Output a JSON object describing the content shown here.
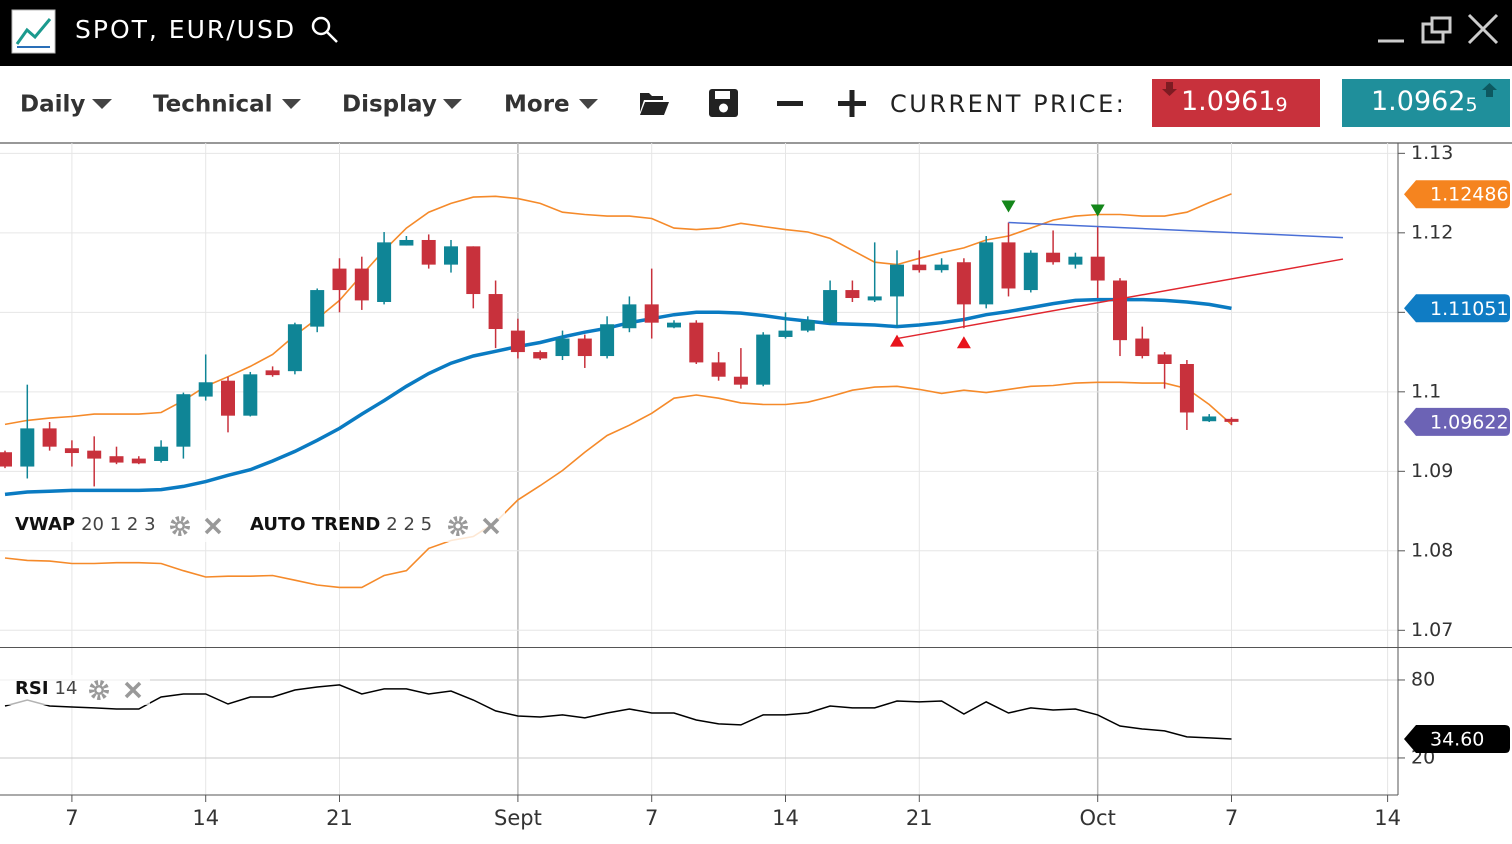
{
  "header": {
    "title": "SPOT, EUR/USD"
  },
  "toolbar": {
    "menus": [
      "Daily",
      "Technical",
      "Display",
      "More"
    ],
    "current_price_label": "CURRENT PRICE:",
    "bid": {
      "main": "1.0961",
      "pip": "9"
    },
    "ask": {
      "main": "1.0962",
      "pip": "5"
    }
  },
  "chart_data": [
    {
      "type": "candlestick",
      "categories": [
        null,
        null,
        null,
        "7",
        null,
        null,
        null,
        null,
        null,
        "14",
        null,
        null,
        null,
        null,
        null,
        "21",
        null,
        null,
        null,
        null,
        null,
        null,
        null,
        "Sept",
        null,
        null,
        null,
        null,
        null,
        "7",
        null,
        null,
        null,
        null,
        null,
        "14",
        null,
        null,
        null,
        null,
        null,
        "21",
        null,
        null,
        null,
        null,
        null,
        null,
        null,
        "Oct",
        null,
        null,
        null,
        null,
        null,
        "7",
        null,
        null,
        null,
        null,
        null,
        null,
        "14"
      ],
      "open": [
        1.0924,
        1.0906,
        1.0954,
        1.0929,
        1.0926,
        1.0919,
        1.0916,
        1.0913,
        1.0931,
        1.0994,
        1.1014,
        1.097,
        1.1027,
        1.1026,
        1.1082,
        1.1155,
        1.1155,
        1.1113,
        1.1184,
        1.1191,
        1.116,
        1.1183,
        1.1123,
        1.1077,
        1.105,
        1.1045,
        1.1067,
        1.1045,
        1.108,
        1.111,
        1.1081,
        1.1087,
        1.1037,
        1.1019,
        1.1009,
        1.1069,
        1.1077,
        1.1087,
        1.1128,
        1.1115,
        1.112,
        1.116,
        1.1153,
        1.1163,
        1.111,
        1.1188,
        1.1128,
        1.1175,
        1.116,
        1.117,
        1.114,
        1.1067,
        1.1047,
        1.1035,
        1.0963,
        1.0966,
        null,
        null,
        null,
        null,
        null,
        null,
        null
      ],
      "high": [
        1.0926,
        1.1009,
        1.0962,
        1.0939,
        1.0944,
        1.0931,
        1.0919,
        1.0939,
        1.0999,
        1.1047,
        1.1019,
        1.1025,
        1.1032,
        1.1087,
        1.113,
        1.1168,
        1.117,
        1.1201,
        1.1196,
        1.1198,
        1.1191,
        1.1183,
        1.114,
        1.1092,
        1.1052,
        1.1077,
        1.1072,
        1.1095,
        1.112,
        1.1155,
        1.109,
        1.109,
        1.105,
        1.1055,
        1.1075,
        1.11,
        1.1095,
        1.114,
        1.114,
        1.1188,
        1.1178,
        1.1178,
        1.1168,
        1.1168,
        1.1196,
        1.1213,
        1.1178,
        1.1203,
        1.1175,
        1.1208,
        1.1143,
        1.1082,
        1.105,
        1.104,
        1.0972,
        1.0968,
        null,
        null,
        null,
        null,
        null,
        null,
        null
      ],
      "low": [
        1.0904,
        1.0891,
        1.0926,
        1.0906,
        1.0881,
        1.0909,
        1.0909,
        1.0911,
        1.0916,
        1.0989,
        1.0949,
        1.0969,
        1.1019,
        1.1022,
        1.1075,
        1.11,
        1.1103,
        1.111,
        1.1184,
        1.1155,
        1.115,
        1.1105,
        1.1055,
        1.1042,
        1.104,
        1.104,
        1.103,
        1.1042,
        1.1075,
        1.1067,
        1.108,
        1.1035,
        1.1014,
        1.1004,
        1.1007,
        1.1067,
        1.1075,
        1.1085,
        1.1113,
        1.1113,
        1.1082,
        1.115,
        1.115,
        1.108,
        1.1105,
        1.112,
        1.1125,
        1.116,
        1.1155,
        1.1118,
        1.1045,
        1.1042,
        1.1004,
        1.0952,
        1.0962,
        1.0958,
        null,
        null,
        null,
        null,
        null,
        null,
        null
      ],
      "close": [
        1.0906,
        1.0954,
        1.0931,
        1.0923,
        1.0916,
        1.0911,
        1.091,
        1.0931,
        1.0997,
        1.1012,
        1.097,
        1.1022,
        1.1021,
        1.1085,
        1.1128,
        1.1128,
        1.1115,
        1.1188,
        1.1191,
        1.116,
        1.1183,
        1.1123,
        1.1079,
        1.105,
        1.1042,
        1.1067,
        1.1045,
        1.1085,
        1.111,
        1.1087,
        1.1087,
        1.1037,
        1.1019,
        1.1009,
        1.1072,
        1.1077,
        1.109,
        1.1128,
        1.1118,
        1.112,
        1.116,
        1.1153,
        1.116,
        1.111,
        1.1188,
        1.113,
        1.1175,
        1.1163,
        1.117,
        1.114,
        1.1065,
        1.1045,
        1.1035,
        1.0974,
        1.0969,
        1.09622,
        null,
        null,
        null,
        null,
        null,
        null,
        null
      ],
      "up_color": "#0f8596",
      "down_color": "#c8313c",
      "bands": {
        "color": "#f58a2a",
        "upper": [
          1.0959,
          1.0964,
          1.0967,
          1.0969,
          1.0972,
          1.0972,
          1.0972,
          1.0974,
          1.0989,
          1.1007,
          1.1019,
          1.1032,
          1.1047,
          1.1071,
          1.1092,
          1.1115,
          1.1147,
          1.1178,
          1.1206,
          1.1226,
          1.1237,
          1.1245,
          1.1246,
          1.1243,
          1.1237,
          1.1226,
          1.1223,
          1.1221,
          1.1221,
          1.1218,
          1.1206,
          1.1204,
          1.1206,
          1.1212,
          1.1208,
          1.1204,
          1.1201,
          1.1193,
          1.1178,
          1.1163,
          1.116,
          1.1168,
          1.1175,
          1.1181,
          1.1191,
          1.1196,
          1.1206,
          1.1216,
          1.1221,
          1.1223,
          1.1223,
          1.1221,
          1.1221,
          1.1226,
          1.1238,
          1.1249,
          null,
          null,
          null,
          null,
          null,
          null,
          null
        ],
        "lower": [
          1.0791,
          1.0788,
          1.0787,
          1.0784,
          1.0784,
          1.0785,
          1.0785,
          1.0784,
          1.0775,
          1.0767,
          1.0768,
          1.0768,
          1.0769,
          1.0763,
          1.0757,
          1.0754,
          1.0754,
          1.0769,
          1.0775,
          1.0803,
          1.0813,
          1.0818,
          1.0836,
          1.0864,
          1.0882,
          1.0901,
          1.0924,
          1.0945,
          1.0958,
          1.0973,
          1.0992,
          1.0996,
          1.0992,
          1.0986,
          1.0984,
          1.0984,
          1.0987,
          1.0994,
          1.1002,
          1.1006,
          1.1007,
          1.1003,
          1.0998,
          1.1002,
          1.0999,
          1.1003,
          1.1007,
          1.1008,
          1.1011,
          1.1012,
          1.1012,
          1.1011,
          1.1011,
          1.1004,
          1.0984,
          1.0959,
          null,
          null,
          null,
          null,
          null,
          null,
          null
        ]
      },
      "vwap": {
        "color": "#0a7bc2",
        "values": [
          1.0871,
          1.0874,
          1.0875,
          1.0876,
          1.0876,
          1.0876,
          1.0876,
          1.0877,
          1.0881,
          1.0887,
          1.0895,
          1.0902,
          1.0913,
          1.0925,
          1.0939,
          1.0954,
          1.0972,
          1.0989,
          1.1007,
          1.1023,
          1.1036,
          1.1045,
          1.1051,
          1.1057,
          1.1062,
          1.1069,
          1.1075,
          1.108,
          1.1087,
          1.1092,
          1.1097,
          1.11,
          1.11,
          1.1099,
          1.1096,
          1.1092,
          1.1089,
          1.1086,
          1.1085,
          1.1084,
          1.1082,
          1.1084,
          1.1087,
          1.1091,
          1.1097,
          1.1101,
          1.1106,
          1.1111,
          1.1115,
          1.1116,
          1.1116,
          1.1116,
          1.1115,
          1.1113,
          1.111,
          1.1105,
          null,
          null,
          null,
          null,
          null,
          null,
          null
        ]
      },
      "trend_lines": [
        {
          "x": [
            45,
            60
          ],
          "y": [
            1.1213,
            1.1194
          ],
          "color": "#4a6fd6"
        },
        {
          "x": [
            40,
            60
          ],
          "y": [
            1.1067,
            1.1167
          ],
          "color": "#e0262e"
        }
      ],
      "signals": {
        "up": {
          "x": [
            40,
            43
          ],
          "color": "#e8131b"
        },
        "down": {
          "x": [
            45,
            49
          ],
          "color": "#14861a"
        }
      },
      "ylim": [
        1.0679,
        1.1313
      ],
      "yticks": [
        1.13,
        1.12,
        1.11,
        1.1,
        1.09,
        1.08,
        1.07
      ],
      "grid": true,
      "price_tags": [
        {
          "value": 1.12486,
          "color": "#f5841f"
        },
        {
          "value": 1.11051,
          "color": "#0f7cc4"
        },
        {
          "value": 1.09622,
          "color": "#6c63b5"
        }
      ],
      "indicators": [
        {
          "name": "VWAP",
          "params": "20 1 2 3"
        },
        {
          "name": "AUTO TREND",
          "params": "2 2 5"
        }
      ]
    },
    {
      "type": "line",
      "indicator": {
        "name": "RSI",
        "params": "14"
      },
      "values": [
        60.0,
        64.6,
        60.0,
        59.2,
        58.5,
        57.7,
        57.7,
        66.9,
        69.2,
        69.2,
        61.5,
        66.9,
        66.9,
        72.3,
        74.6,
        76.2,
        69.2,
        73.1,
        73.1,
        69.2,
        71.5,
        64.6,
        56.2,
        52.3,
        51.5,
        53.1,
        50.8,
        54.6,
        57.7,
        54.6,
        54.6,
        49.2,
        46.2,
        45.4,
        53.1,
        53.1,
        54.6,
        60.0,
        58.5,
        58.5,
        63.8,
        63.1,
        63.8,
        53.8,
        63.1,
        54.6,
        58.5,
        56.9,
        57.7,
        53.1,
        44.6,
        42.3,
        40.8,
        36.2,
        35.4,
        34.6,
        null,
        null,
        null,
        null,
        null,
        null,
        null
      ],
      "color": "#000000",
      "ylim": [
        -8.5,
        104.6
      ],
      "yticks": [
        80,
        20
      ],
      "grid": true,
      "price_tag": {
        "value": 34.6,
        "label": "34.60",
        "color": "#000000"
      }
    }
  ]
}
